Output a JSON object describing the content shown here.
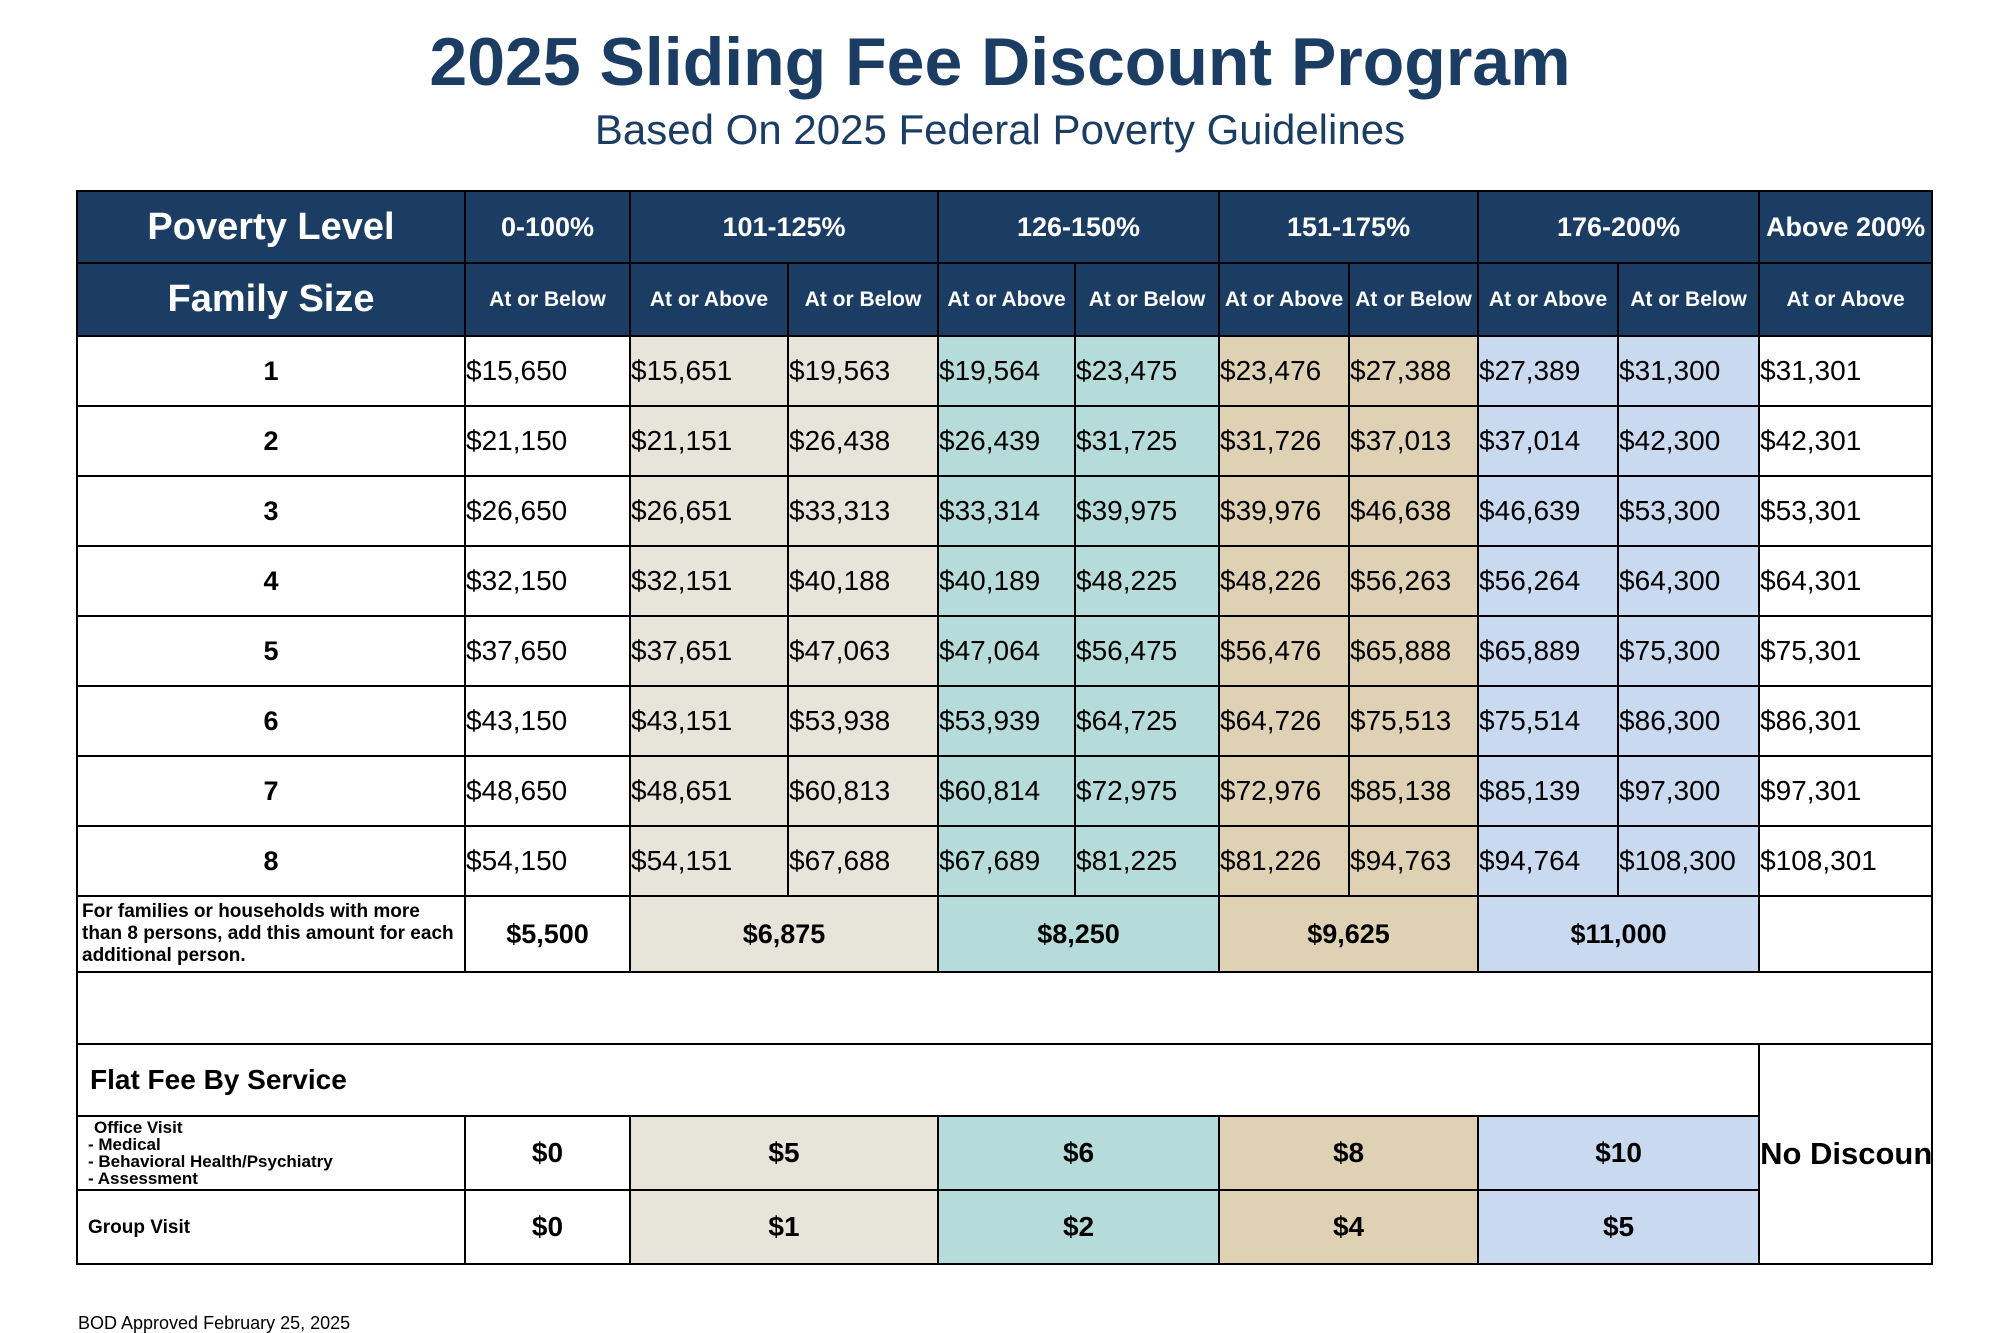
{
  "title": "2025 Sliding Fee Discount Program",
  "subtitle": "Based On 2025 Federal Poverty Guidelines",
  "header": {
    "poverty_level_label": "Poverty Level",
    "family_size_label": "Family Size",
    "levels": [
      "0-100%",
      "101-125%",
      "126-150%",
      "151-175%",
      "176-200%",
      "Above 200%"
    ],
    "at_or_below": "At or Below",
    "at_or_above": "At or Above"
  },
  "rows": [
    {
      "size": "1",
      "values": [
        "$15,650",
        "$15,651",
        "$19,563",
        "$19,564",
        "$23,475",
        "$23,476",
        "$27,388",
        "$27,389",
        "$31,300",
        "$31,301"
      ]
    },
    {
      "size": "2",
      "values": [
        "$21,150",
        "$21,151",
        "$26,438",
        "$26,439",
        "$31,725",
        "$31,726",
        "$37,013",
        "$37,014",
        "$42,300",
        "$42,301"
      ]
    },
    {
      "size": "3",
      "values": [
        "$26,650",
        "$26,651",
        "$33,313",
        "$33,314",
        "$39,975",
        "$39,976",
        "$46,638",
        "$46,639",
        "$53,300",
        "$53,301"
      ]
    },
    {
      "size": "4",
      "values": [
        "$32,150",
        "$32,151",
        "$40,188",
        "$40,189",
        "$48,225",
        "$48,226",
        "$56,263",
        "$56,264",
        "$64,300",
        "$64,301"
      ]
    },
    {
      "size": "5",
      "values": [
        "$37,650",
        "$37,651",
        "$47,063",
        "$47,064",
        "$56,475",
        "$56,476",
        "$65,888",
        "$65,889",
        "$75,300",
        "$75,301"
      ]
    },
    {
      "size": "6",
      "values": [
        "$43,150",
        "$43,151",
        "$53,938",
        "$53,939",
        "$64,725",
        "$64,726",
        "$75,513",
        "$75,514",
        "$86,300",
        "$86,301"
      ]
    },
    {
      "size": "7",
      "values": [
        "$48,650",
        "$48,651",
        "$60,813",
        "$60,814",
        "$72,975",
        "$72,976",
        "$85,138",
        "$85,139",
        "$97,300",
        "$97,301"
      ]
    },
    {
      "size": "8",
      "values": [
        "$54,150",
        "$54,151",
        "$67,688",
        "$67,689",
        "$81,225",
        "$81,226",
        "$94,763",
        "$94,764",
        "$108,300",
        "$108,301"
      ]
    }
  ],
  "additional": {
    "note": "For families or households with more than 8 persons, add this amount for each additional person.",
    "amounts": [
      "$5,500",
      "$6,875",
      "$8,250",
      "$9,625",
      "$11,000"
    ]
  },
  "flat_fee": {
    "label": "Flat Fee By Service",
    "office_visit": {
      "title": "Office Visit",
      "items": [
        "- Medical",
        "- Behavioral Health/Psychiatry",
        "- Assessment"
      ],
      "fees": [
        "$0",
        "$5",
        "$6",
        "$8",
        "$10"
      ]
    },
    "group_visit": {
      "title": "Group Visit",
      "fees": [
        "$0",
        "$1",
        "$2",
        "$4",
        "$5"
      ]
    },
    "no_discount": "No Discount"
  },
  "footer": "BOD Approved February 25, 2025",
  "colors": {
    "header_bg": "#1c3d63",
    "band_101_125": "#e7e4da",
    "band_126_150": "#b5dcda",
    "band_151_175": "#dfd1b3",
    "band_176_200": "#c9d9f0"
  }
}
